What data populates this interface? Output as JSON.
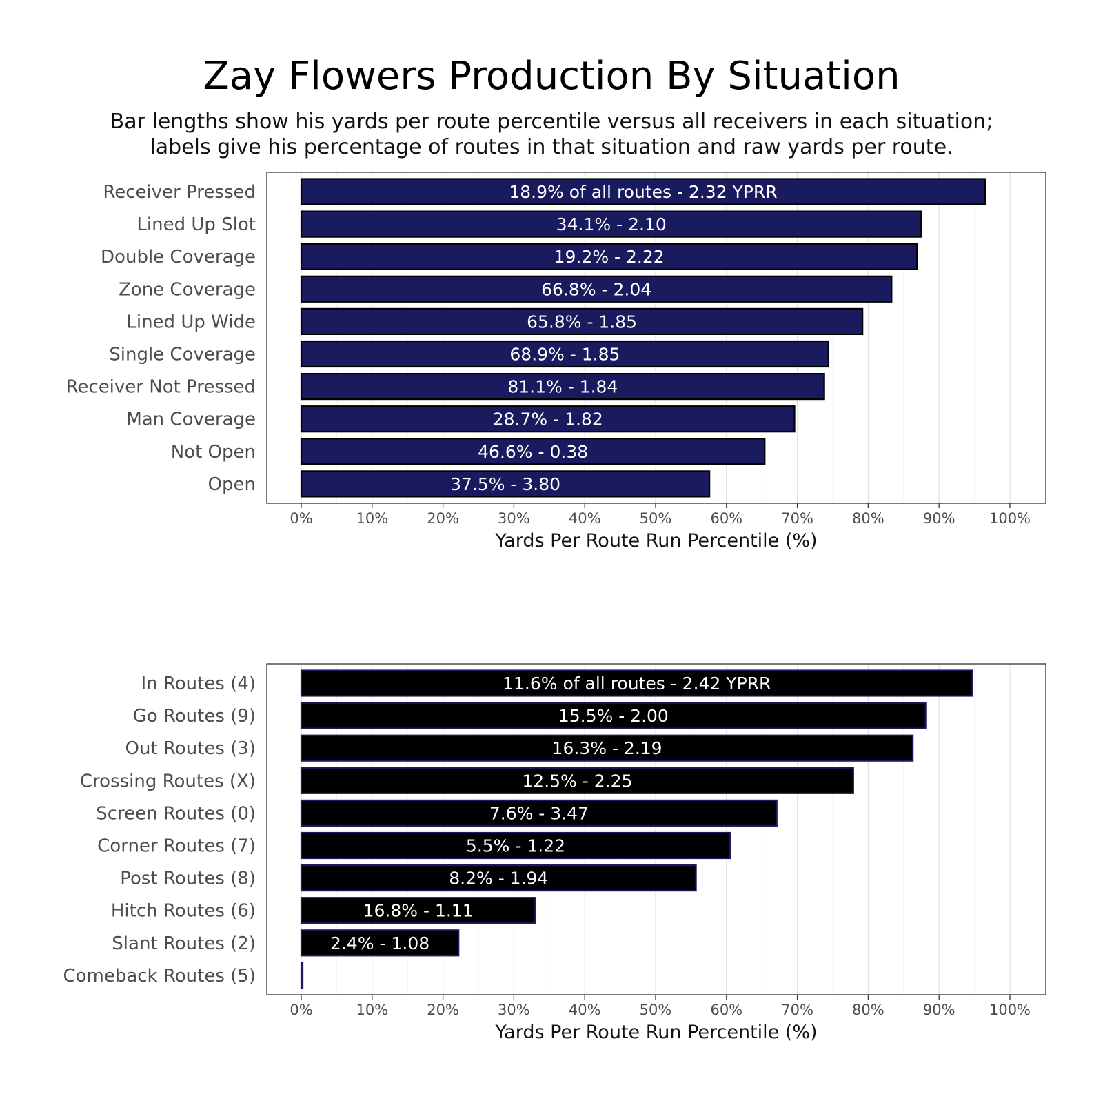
{
  "title": "Zay Flowers Production By Situation",
  "subtitle_line1": "Bar lengths show his yards per route percentile versus all receivers in each situation;",
  "subtitle_line2": "labels give his percentage of routes in that situation and raw yards per route.",
  "chart_data": [
    {
      "type": "bar",
      "orientation": "horizontal",
      "xlabel": "Yards Per Route Run Percentile (%)",
      "xlim": [
        0,
        100
      ],
      "xticks": [
        "0%",
        "10%",
        "20%",
        "30%",
        "40%",
        "50%",
        "60%",
        "70%",
        "80%",
        "90%",
        "100%"
      ],
      "grid": true,
      "bar_color": "#1a1a5e",
      "bar_outline": "#000000",
      "categories": [
        "Receiver Pressed",
        "Lined Up Slot",
        "Double Coverage",
        "Zone Coverage",
        "Lined Up Wide",
        "Single Coverage",
        "Receiver Not Pressed",
        "Man Coverage",
        "Not Open",
        "Open"
      ],
      "values": [
        96.5,
        87.5,
        86.9,
        83.3,
        79.2,
        74.4,
        73.8,
        69.6,
        65.4,
        57.6
      ],
      "labels": [
        "18.9% of all routes - 2.32 YPRR",
        "34.1% - 2.10",
        "19.2% - 2.22",
        "66.8% - 2.04",
        "65.8% - 1.85",
        "68.9% - 1.85",
        "81.1% - 1.84",
        "28.7% - 1.82",
        "46.6% - 0.38",
        "37.5% - 3.80"
      ]
    },
    {
      "type": "bar",
      "orientation": "horizontal",
      "xlabel": "Yards Per Route Run Percentile (%)",
      "xlim": [
        0,
        100
      ],
      "xticks": [
        "0%",
        "10%",
        "20%",
        "30%",
        "40%",
        "50%",
        "60%",
        "70%",
        "80%",
        "90%",
        "100%"
      ],
      "grid": true,
      "bar_color": "#000000",
      "bar_outline": "#1a1a5e",
      "categories": [
        "In Routes (4)",
        "Go Routes (9)",
        "Out Routes (3)",
        "Crossing Routes (X)",
        "Screen Routes (0)",
        "Corner Routes (7)",
        "Post Routes (8)",
        "Hitch Routes (6)",
        "Slant Routes (2)",
        "Comeback Routes (5)"
      ],
      "values": [
        94.7,
        88.1,
        86.3,
        77.9,
        67.1,
        60.5,
        55.7,
        33.0,
        22.2,
        0.2
      ],
      "labels": [
        "11.6% of all routes - 2.42 YPRR",
        "15.5% - 2.00",
        "16.3% - 2.19",
        "12.5% - 2.25",
        "7.6% - 3.47",
        "5.5% - 1.22",
        "8.2% - 1.94",
        "16.8% - 1.11",
        "2.4% - 1.08",
        ""
      ]
    }
  ]
}
